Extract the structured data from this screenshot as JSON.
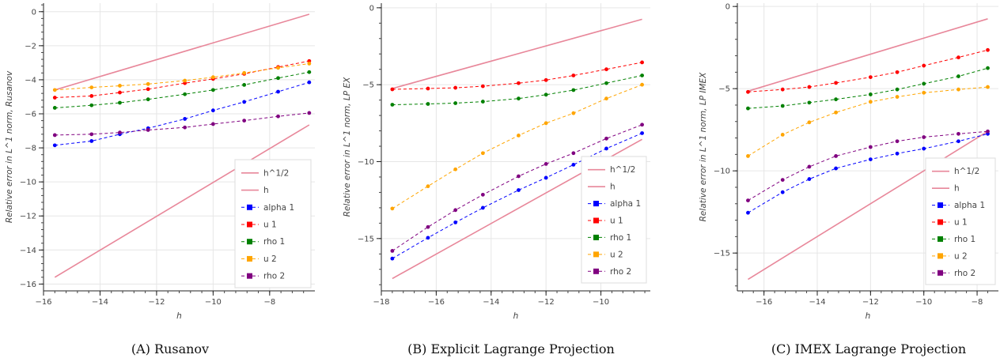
{
  "figure": {
    "captions": [
      "(A) Rusanov",
      "(B) Explicit Lagrange Projection",
      "(C) IMEX Lagrange Projection"
    ]
  },
  "chart_data": [
    {
      "type": "line",
      "xlabel": "h",
      "ylabel": "Relative error in L^1 norm, Rusanov",
      "xlim": [
        -16.0,
        -6.4
      ],
      "ylim": [
        -16.4,
        0.5
      ],
      "xticks": [
        -16,
        -14,
        -12,
        -10,
        -8
      ],
      "xtick_labels": [
        "−16",
        "−14",
        "−12",
        "−10",
        "−8"
      ],
      "yticks": [
        0,
        -2,
        -4,
        -6,
        -8,
        -10,
        -12,
        -14,
        -16
      ],
      "ytick_labels": [
        "0",
        "−2",
        "−4",
        "−6",
        "−8",
        "−10",
        "−12",
        "−14",
        "−16"
      ],
      "grid": true,
      "legend_position": "bottom-right",
      "series": [
        {
          "name": "h^1/2",
          "color": "#e8879a",
          "style": "solid",
          "marker": false,
          "x": [
            -15.6,
            -6.6
          ],
          "y": [
            -4.6,
            -0.15
          ]
        },
        {
          "name": "h",
          "color": "#e8879a",
          "style": "solid",
          "marker": false,
          "x": [
            -15.6,
            -6.6
          ],
          "y": [
            -15.6,
            -6.65
          ]
        },
        {
          "name": "alpha 1",
          "color": "#0000ff",
          "style": "dashed",
          "marker": true,
          "x": [
            -15.6,
            -14.3,
            -13.3,
            -12.3,
            -11.0,
            -10.0,
            -8.9,
            -7.7,
            -6.6
          ],
          "y": [
            -7.85,
            -7.6,
            -7.2,
            -6.85,
            -6.3,
            -5.8,
            -5.3,
            -4.7,
            -4.15
          ]
        },
        {
          "name": "u 1",
          "color": "#ff0000",
          "style": "dashed",
          "marker": true,
          "x": [
            -15.6,
            -14.3,
            -13.3,
            -12.3,
            -11.0,
            -10.0,
            -8.9,
            -7.7,
            -6.6
          ],
          "y": [
            -5.05,
            -4.95,
            -4.75,
            -4.55,
            -4.2,
            -3.95,
            -3.65,
            -3.25,
            -2.9
          ]
        },
        {
          "name": "rho 1",
          "color": "#008000",
          "style": "dashed",
          "marker": true,
          "x": [
            -15.6,
            -14.3,
            -13.3,
            -12.3,
            -11.0,
            -10.0,
            -8.9,
            -7.7,
            -6.6
          ],
          "y": [
            -5.65,
            -5.5,
            -5.35,
            -5.15,
            -4.85,
            -4.6,
            -4.3,
            -3.9,
            -3.55
          ]
        },
        {
          "name": "u 2",
          "color": "#ffa500",
          "style": "dashed",
          "marker": true,
          "x": [
            -15.6,
            -14.3,
            -13.3,
            -12.3,
            -11.0,
            -10.0,
            -8.9,
            -7.7,
            -6.6
          ],
          "y": [
            -4.6,
            -4.45,
            -4.35,
            -4.25,
            -4.05,
            -3.85,
            -3.6,
            -3.3,
            -3.05
          ]
        },
        {
          "name": "rho 2",
          "color": "#800080",
          "style": "dashed",
          "marker": true,
          "x": [
            -15.6,
            -14.3,
            -13.3,
            -12.3,
            -11.0,
            -10.0,
            -8.9,
            -7.7,
            -6.6
          ],
          "y": [
            -7.25,
            -7.2,
            -7.1,
            -6.95,
            -6.8,
            -6.6,
            -6.4,
            -6.15,
            -5.95
          ]
        }
      ]
    },
    {
      "type": "line",
      "xlabel": "h",
      "ylabel": "Relative error in L^1 norm, LP EX",
      "xlim": [
        -18.0,
        -8.2
      ],
      "ylim": [
        -18.4,
        0.3
      ],
      "xticks": [
        -18,
        -16,
        -14,
        -12,
        -10
      ],
      "xtick_labels": [
        "−18",
        "−16",
        "−14",
        "−12",
        "−10"
      ],
      "yticks": [
        0,
        -5,
        -10,
        -15
      ],
      "ytick_labels": [
        "0",
        "−5",
        "−10",
        "−15"
      ],
      "grid": true,
      "legend_position": "bottom-right",
      "series": [
        {
          "name": "h^1/2",
          "color": "#e8879a",
          "style": "solid",
          "marker": false,
          "x": [
            -17.6,
            -8.5
          ],
          "y": [
            -5.25,
            -0.75
          ]
        },
        {
          "name": "h",
          "color": "#e8879a",
          "style": "solid",
          "marker": false,
          "x": [
            -17.6,
            -8.5
          ],
          "y": [
            -17.6,
            -8.55
          ]
        },
        {
          "name": "alpha 1",
          "color": "#0000ff",
          "style": "dashed",
          "marker": true,
          "x": [
            -17.6,
            -16.3,
            -15.3,
            -14.3,
            -13.0,
            -12.0,
            -11.0,
            -9.8,
            -8.5
          ],
          "y": [
            -16.3,
            -14.95,
            -13.95,
            -13.0,
            -11.85,
            -11.05,
            -10.2,
            -9.15,
            -8.15
          ]
        },
        {
          "name": "u 1",
          "color": "#ff0000",
          "style": "dashed",
          "marker": true,
          "x": [
            -17.6,
            -16.3,
            -15.3,
            -14.3,
            -13.0,
            -12.0,
            -11.0,
            -9.8,
            -8.5
          ],
          "y": [
            -5.3,
            -5.25,
            -5.2,
            -5.1,
            -4.9,
            -4.7,
            -4.4,
            -4.0,
            -3.55
          ]
        },
        {
          "name": "rho 1",
          "color": "#008000",
          "style": "dashed",
          "marker": true,
          "x": [
            -17.6,
            -16.3,
            -15.3,
            -14.3,
            -13.0,
            -12.0,
            -11.0,
            -9.8,
            -8.5
          ],
          "y": [
            -6.3,
            -6.25,
            -6.2,
            -6.1,
            -5.9,
            -5.65,
            -5.35,
            -4.9,
            -4.4
          ]
        },
        {
          "name": "u 2",
          "color": "#ffa500",
          "style": "dashed",
          "marker": true,
          "x": [
            -17.6,
            -16.3,
            -15.3,
            -14.3,
            -13.0,
            -12.0,
            -11.0,
            -9.8,
            -8.5
          ],
          "y": [
            -13.05,
            -11.6,
            -10.5,
            -9.45,
            -8.3,
            -7.5,
            -6.85,
            -5.9,
            -5.0
          ]
        },
        {
          "name": "rho 2",
          "color": "#800080",
          "style": "dashed",
          "marker": true,
          "x": [
            -17.6,
            -16.3,
            -15.3,
            -14.3,
            -13.0,
            -12.0,
            -11.0,
            -9.8,
            -8.5
          ],
          "y": [
            -15.8,
            -14.25,
            -13.15,
            -12.15,
            -10.95,
            -10.15,
            -9.45,
            -8.5,
            -7.6
          ]
        }
      ]
    },
    {
      "type": "line",
      "xlabel": "h",
      "ylabel": "Relative error in L^1 norm, LP IMEX",
      "xlim": [
        -17.0,
        -7.2
      ],
      "ylim": [
        -17.3,
        0.2
      ],
      "xticks": [
        -16,
        -14,
        -12,
        -10,
        -8
      ],
      "xtick_labels": [
        "−16",
        "−14",
        "−12",
        "−10",
        "−8"
      ],
      "yticks": [
        0,
        -5,
        -10,
        -15
      ],
      "ytick_labels": [
        "0",
        "−5",
        "−10",
        "−15"
      ],
      "grid": true,
      "legend_position": "bottom-right",
      "series": [
        {
          "name": "h^1/2",
          "color": "#e8879a",
          "style": "solid",
          "marker": false,
          "x": [
            -16.6,
            -7.6
          ],
          "y": [
            -5.15,
            -0.75
          ]
        },
        {
          "name": "h",
          "color": "#e8879a",
          "style": "solid",
          "marker": false,
          "x": [
            -16.6,
            -7.6
          ],
          "y": [
            -16.6,
            -7.6
          ]
        },
        {
          "name": "alpha 1",
          "color": "#0000ff",
          "style": "dashed",
          "marker": true,
          "x": [
            -16.6,
            -15.3,
            -14.3,
            -13.3,
            -12.0,
            -11.0,
            -10.0,
            -8.7,
            -7.6
          ],
          "y": [
            -12.55,
            -11.3,
            -10.5,
            -9.85,
            -9.3,
            -8.95,
            -8.65,
            -8.2,
            -7.75
          ]
        },
        {
          "name": "u 1",
          "color": "#ff0000",
          "style": "dashed",
          "marker": true,
          "x": [
            -16.6,
            -15.3,
            -14.3,
            -13.3,
            -12.0,
            -11.0,
            -10.0,
            -8.7,
            -7.6
          ],
          "y": [
            -5.2,
            -5.05,
            -4.9,
            -4.65,
            -4.3,
            -4.0,
            -3.6,
            -3.1,
            -2.65
          ]
        },
        {
          "name": "rho 1",
          "color": "#008000",
          "style": "dashed",
          "marker": true,
          "x": [
            -16.6,
            -15.3,
            -14.3,
            -13.3,
            -12.0,
            -11.0,
            -10.0,
            -8.7,
            -7.6
          ],
          "y": [
            -6.2,
            -6.05,
            -5.85,
            -5.65,
            -5.35,
            -5.05,
            -4.7,
            -4.25,
            -3.75
          ]
        },
        {
          "name": "u 2",
          "color": "#ffa500",
          "style": "dashed",
          "marker": true,
          "x": [
            -16.6,
            -15.3,
            -14.3,
            -13.3,
            -12.0,
            -11.0,
            -10.0,
            -8.7,
            -7.6
          ],
          "y": [
            -9.1,
            -7.8,
            -7.05,
            -6.45,
            -5.8,
            -5.5,
            -5.25,
            -5.05,
            -4.9
          ]
        },
        {
          "name": "rho 2",
          "color": "#800080",
          "style": "dashed",
          "marker": true,
          "x": [
            -16.6,
            -15.3,
            -14.3,
            -13.3,
            -12.0,
            -11.0,
            -10.0,
            -8.7,
            -7.6
          ],
          "y": [
            -11.8,
            -10.55,
            -9.75,
            -9.1,
            -8.55,
            -8.2,
            -7.95,
            -7.75,
            -7.6
          ]
        }
      ]
    }
  ]
}
